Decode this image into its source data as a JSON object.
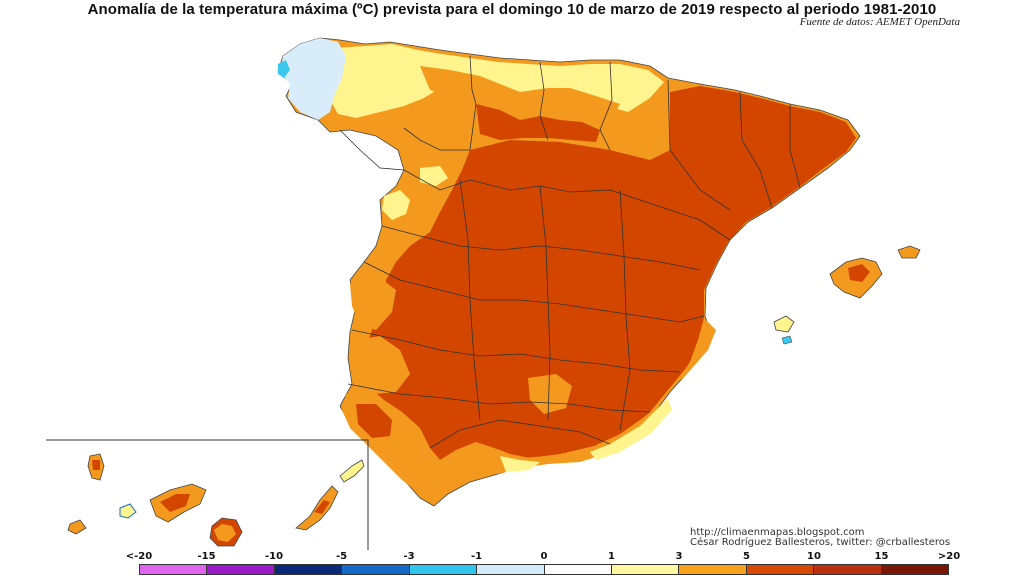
{
  "title": "Anomalía de la temperatura máxima (ºC) prevista para el domingo 10 de marzo de 2019 respecto al periodo 1981-2010",
  "source": "Fuente de datos: AEMET OpenData",
  "credits": {
    "blog": "http://climaenmapas.blogspot.com",
    "author": "César Rodríguez Ballesteros, twitter: @crballesteros"
  },
  "legend": {
    "labels": [
      "<-20",
      "-15",
      "-10",
      "-5",
      "-3",
      "-1",
      "0",
      "1",
      "3",
      "5",
      "10",
      "15",
      ">20"
    ],
    "colors": [
      "#e066f0",
      "#9a19c8",
      "#0a2a78",
      "#1569c9",
      "#30c6ec",
      "#d4ecfa",
      "#ffffff",
      "#fff8a0",
      "#f7a21d",
      "#d64a06",
      "#ba3010",
      "#7a1606"
    ]
  },
  "map_colors": {
    "anom_10": "#d34600",
    "anom_5": "#f39a1e",
    "anom_3": "#fff48e",
    "anom_1": "#d8ecfa",
    "anom_0": "#3cc8ec",
    "border": "#333333"
  }
}
